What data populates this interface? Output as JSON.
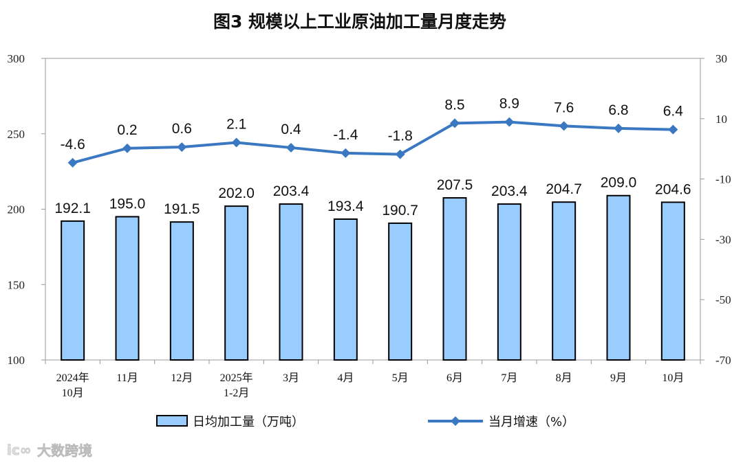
{
  "chart_data": {
    "type": "bar+line",
    "title": "图3  规模以上工业原油加工量月度走势",
    "categories": [
      [
        "2024年",
        "10月"
      ],
      [
        "11月"
      ],
      [
        "12月"
      ],
      [
        "2025年",
        "1-2月"
      ],
      [
        "3月"
      ],
      [
        "4月"
      ],
      [
        "5月"
      ],
      [
        "6月"
      ],
      [
        "7月"
      ],
      [
        "8月"
      ],
      [
        "9月"
      ],
      [
        "10月"
      ]
    ],
    "series": [
      {
        "name": "日均加工量（万吨）",
        "type": "bar",
        "axis": "left",
        "color": "#99CCFF",
        "values": [
          192.1,
          195.0,
          191.5,
          202.0,
          203.4,
          193.4,
          190.7,
          207.5,
          203.4,
          204.7,
          209.0,
          204.6
        ]
      },
      {
        "name": "当月增速（%）",
        "type": "line",
        "axis": "right",
        "color": "#3A78C2",
        "values": [
          -4.6,
          0.2,
          0.6,
          2.1,
          0.4,
          -1.4,
          -1.8,
          8.5,
          8.9,
          7.6,
          6.8,
          6.4
        ]
      }
    ],
    "y_left": {
      "ylim": [
        100,
        300
      ],
      "ticks": [
        100,
        150,
        200,
        250,
        300
      ]
    },
    "y_right": {
      "ylim": [
        -70,
        30
      ],
      "ticks": [
        -70,
        -50,
        -30,
        -10,
        10,
        30
      ]
    },
    "grid": false,
    "legend": "bottom"
  },
  "watermark": "大数跨境"
}
